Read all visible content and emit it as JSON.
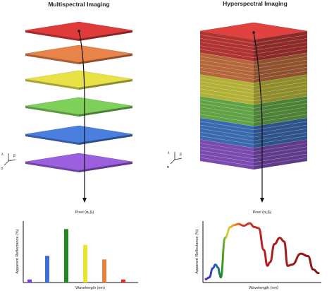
{
  "left_panel": {
    "title": "Multispectral Imaging",
    "layer_colors": [
      "#e03b3b",
      "#e8834a",
      "#e8e246",
      "#7ed05a",
      "#4a7fe0",
      "#9b5fe0"
    ],
    "pixel_label": "Pixel (αᵢ,βᵢ)",
    "axes": {
      "a": "α",
      "b": "β",
      "l": "λ"
    },
    "chart": {
      "ylabel": "Apparent Reflectance (%)",
      "xlabel": "Wavelength (nm)",
      "bars": [
        {
          "color": "#7a3fd0",
          "value": 5
        },
        {
          "color": "#3f6fd0",
          "value": 44
        },
        {
          "color": "#1e8a1e",
          "value": 88
        },
        {
          "color": "#e6e632",
          "value": 62
        },
        {
          "color": "#e8823a",
          "value": 38
        },
        {
          "color": "#e02a2a",
          "value": 5
        }
      ]
    }
  },
  "right_panel": {
    "title": "Hyperspectral Imaging",
    "band_colors": [
      "#e0433f",
      "#e8834a",
      "#e6e246",
      "#7ed05a",
      "#4a86e0",
      "#9b5fe0"
    ],
    "pixel_label": "Pixel (αᵢ,βᵢ)",
    "axes": {
      "a": "α",
      "b": "β",
      "l": "λ"
    },
    "chart": {
      "ylabel": "Apparent Reflectance (%)",
      "xlabel": "Wavelength (nm)",
      "spectrum": [
        [
          0,
          2
        ],
        [
          4,
          5
        ],
        [
          8,
          20
        ],
        [
          11,
          26
        ],
        [
          14,
          21
        ],
        [
          16,
          10
        ],
        [
          17,
          5
        ],
        [
          22,
          70
        ],
        [
          28,
          88
        ],
        [
          32,
          91
        ],
        [
          37,
          93
        ],
        [
          43,
          90
        ],
        [
          50,
          94
        ],
        [
          55,
          88
        ],
        [
          60,
          86
        ],
        [
          66,
          50
        ],
        [
          70,
          24
        ],
        [
          73,
          30
        ],
        [
          78,
          60
        ],
        [
          84,
          70
        ],
        [
          89,
          64
        ],
        [
          93,
          24
        ],
        [
          98,
          26
        ],
        [
          108,
          44
        ],
        [
          116,
          40
        ],
        [
          122,
          18
        ],
        [
          128,
          12
        ]
      ]
    }
  }
}
